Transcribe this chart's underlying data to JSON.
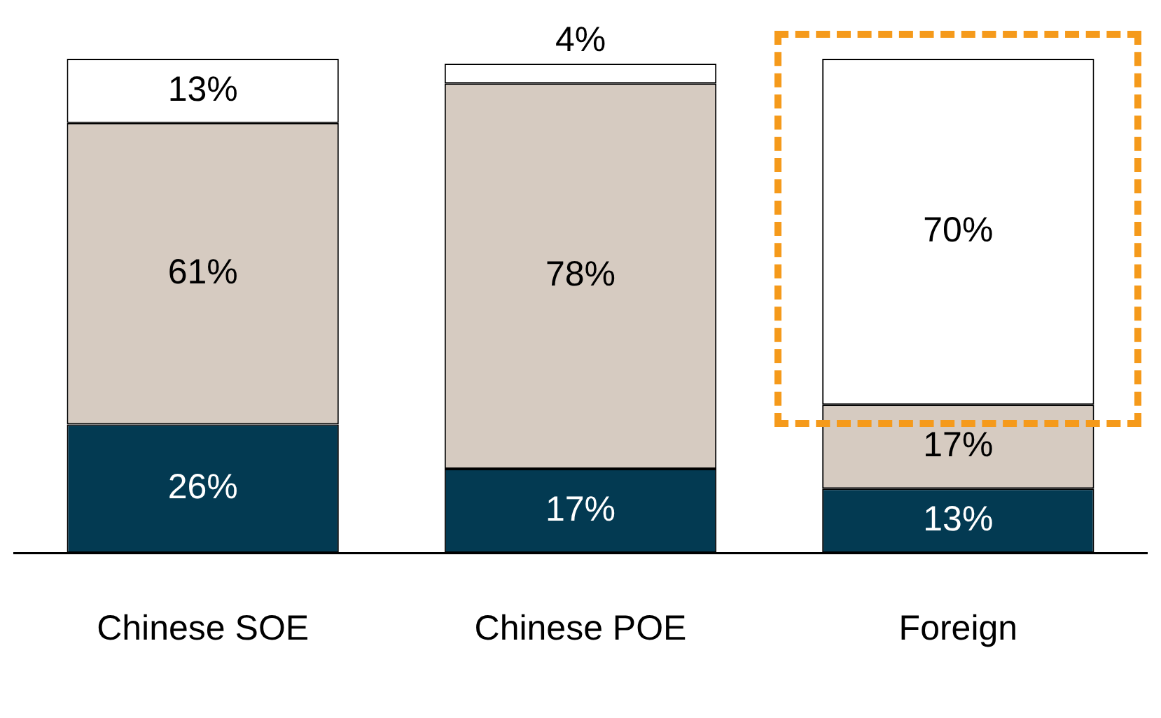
{
  "chart_data": {
    "type": "bar",
    "stacked": true,
    "categories": [
      "Chinese SOE",
      "Chinese POE",
      "Foreign"
    ],
    "ylim": [
      0,
      100
    ],
    "tick_labels": "x",
    "grid": false,
    "legend": false,
    "series": [
      {
        "color": "#033a52",
        "values": [
          26,
          17,
          13
        ],
        "value_labels": [
          "26%",
          "17%",
          "13%"
        ]
      },
      {
        "color": "#d6cbc1",
        "values": [
          61,
          78,
          17
        ],
        "value_labels": [
          "61%",
          "78%",
          "17%"
        ]
      },
      {
        "color": "#ffffff",
        "values": [
          13,
          4,
          70
        ],
        "value_labels": [
          "13%",
          "4%",
          "70%"
        ]
      }
    ]
  }
}
